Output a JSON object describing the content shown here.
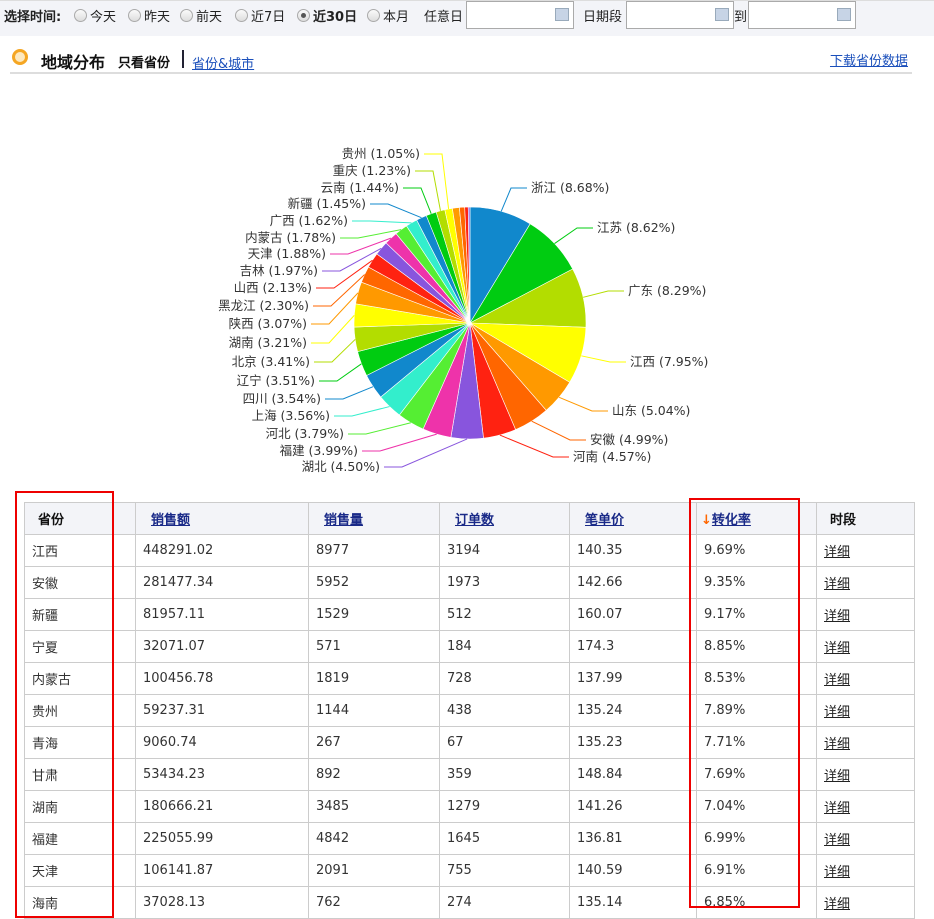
{
  "filter": {
    "label": "选择时间:",
    "options": [
      {
        "label": "今天",
        "selected": false
      },
      {
        "label": "昨天",
        "selected": false
      },
      {
        "label": "前天",
        "selected": false
      },
      {
        "label": "近7日",
        "selected": false
      },
      {
        "label": "近30日",
        "selected": true
      },
      {
        "label": "本月",
        "selected": false
      }
    ],
    "any_day_label": "任意日",
    "range_label": "日期段",
    "to_label": "到",
    "any_day_value": "",
    "range_start_value": "",
    "range_end_value": ""
  },
  "section": {
    "title": "地域分布",
    "only_province": "只看省份",
    "province_city_link": "省份&城市",
    "download_link": "下载省份数据"
  },
  "chart_data": {
    "type": "pie",
    "start_angle": "12 o'clock",
    "direction": "clockwise",
    "slices": [
      {
        "name": "浙江",
        "value": 8.68,
        "label": "浙江 (8.68%)",
        "color": "#1188cc"
      },
      {
        "name": "江苏",
        "value": 8.62,
        "label": "江苏 (8.62%)",
        "color": "#00cc11"
      },
      {
        "name": "广东",
        "value": 8.29,
        "label": "广东 (8.29%)",
        "color": "#b3dd00"
      },
      {
        "name": "江西",
        "value": 7.95,
        "label": "江西 (7.95%)",
        "color": "#ffff00"
      },
      {
        "name": "山东",
        "value": 5.04,
        "label": "山东 (5.04%)",
        "color": "#ff9900"
      },
      {
        "name": "安徽",
        "value": 4.99,
        "label": "安徽 (4.99%)",
        "color": "#ff6600"
      },
      {
        "name": "河南",
        "value": 4.57,
        "label": "河南 (4.57%)",
        "color": "#ff2211"
      },
      {
        "name": "湖北",
        "value": 4.5,
        "label": "湖北 (4.50%)",
        "color": "#8855dd"
      },
      {
        "name": "福建",
        "value": 3.99,
        "label": "福建 (3.99%)",
        "color": "#ee33aa"
      },
      {
        "name": "河北",
        "value": 3.79,
        "label": "河北 (3.79%)",
        "color": "#55ee33"
      },
      {
        "name": "上海",
        "value": 3.56,
        "label": "上海 (3.56%)",
        "color": "#33eecc"
      },
      {
        "name": "四川",
        "value": 3.54,
        "label": "四川 (3.54%)",
        "color": "#1188cc"
      },
      {
        "name": "辽宁",
        "value": 3.51,
        "label": "辽宁 (3.51%)",
        "color": "#00cc11"
      },
      {
        "name": "北京",
        "value": 3.41,
        "label": "北京 (3.41%)",
        "color": "#b3dd00"
      },
      {
        "name": "湖南",
        "value": 3.21,
        "label": "湖南 (3.21%)",
        "color": "#ffff00"
      },
      {
        "name": "陕西",
        "value": 3.07,
        "label": "陕西 (3.07%)",
        "color": "#ff9900"
      },
      {
        "name": "黑龙江",
        "value": 2.3,
        "label": "黑龙江 (2.30%)",
        "color": "#ff6600"
      },
      {
        "name": "山西",
        "value": 2.13,
        "label": "山西 (2.13%)",
        "color": "#ff2211"
      },
      {
        "name": "吉林",
        "value": 1.97,
        "label": "吉林 (1.97%)",
        "color": "#8855dd"
      },
      {
        "name": "天津",
        "value": 1.88,
        "label": "天津 (1.88%)",
        "color": "#ee33aa"
      },
      {
        "name": "内蒙古",
        "value": 1.78,
        "label": "内蒙古 (1.78%)",
        "color": "#55ee33"
      },
      {
        "name": "广西",
        "value": 1.62,
        "label": "广西 (1.62%)",
        "color": "#33eecc"
      },
      {
        "name": "新疆",
        "value": 1.45,
        "label": "新疆 (1.45%)",
        "color": "#1188cc"
      },
      {
        "name": "云南",
        "value": 1.44,
        "label": "云南 (1.44%)",
        "color": "#00cc11"
      },
      {
        "name": "重庆",
        "value": 1.23,
        "label": "重庆 (1.23%)",
        "color": "#b3dd00"
      },
      {
        "name": "贵州",
        "value": 1.05,
        "label": "贵州 (1.05%)",
        "color": "#ffff00"
      }
    ],
    "unlabeled_colors": [
      "#ff9900",
      "#ff6600",
      "#ff2211",
      "#8855dd"
    ]
  },
  "table": {
    "headers": [
      {
        "label": "省份",
        "sortable": false
      },
      {
        "label": "销售额",
        "sortable": true
      },
      {
        "label": "销售量",
        "sortable": true
      },
      {
        "label": "订单数",
        "sortable": true
      },
      {
        "label": "笔单价",
        "sortable": true
      },
      {
        "label": "转化率",
        "sortable": true,
        "sorted": "desc",
        "sort_icon": "↓"
      },
      {
        "label": "时段",
        "sortable": false
      }
    ],
    "rows": [
      [
        "江西",
        "448291.02",
        "8977",
        "3194",
        "140.35",
        "9.69%",
        "详细"
      ],
      [
        "安徽",
        "281477.34",
        "5952",
        "1973",
        "142.66",
        "9.35%",
        "详细"
      ],
      [
        "新疆",
        "81957.11",
        "1529",
        "512",
        "160.07",
        "9.17%",
        "详细"
      ],
      [
        "宁夏",
        "32071.07",
        "571",
        "184",
        "174.3",
        "8.85%",
        "详细"
      ],
      [
        "内蒙古",
        "100456.78",
        "1819",
        "728",
        "137.99",
        "8.53%",
        "详细"
      ],
      [
        "贵州",
        "59237.31",
        "1144",
        "438",
        "135.24",
        "7.89%",
        "详细"
      ],
      [
        "青海",
        "9060.74",
        "267",
        "67",
        "135.23",
        "7.71%",
        "详细"
      ],
      [
        "甘肃",
        "53434.23",
        "892",
        "359",
        "148.84",
        "7.69%",
        "详细"
      ],
      [
        "湖南",
        "180666.21",
        "3485",
        "1279",
        "141.26",
        "7.04%",
        "详细"
      ],
      [
        "福建",
        "225055.99",
        "4842",
        "1645",
        "136.81",
        "6.99%",
        "详细"
      ],
      [
        "天津",
        "106141.87",
        "2091",
        "755",
        "140.59",
        "6.91%",
        "详细"
      ],
      [
        "海南",
        "37028.13",
        "762",
        "274",
        "135.14",
        "6.85%",
        "详细"
      ]
    ]
  }
}
